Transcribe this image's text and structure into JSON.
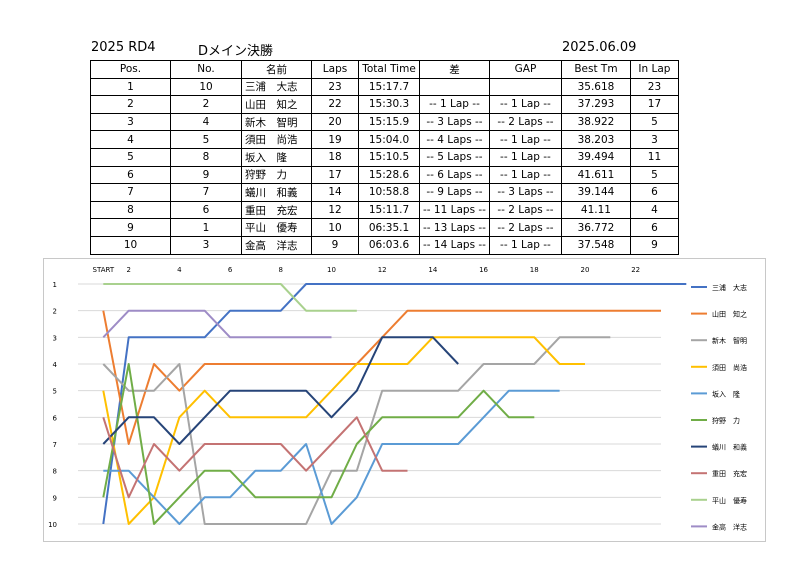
{
  "header": {
    "left": "2025 RD4",
    "mid": "Dメイン決勝",
    "right": "2025.06.09"
  },
  "table": {
    "columns": [
      "Pos.",
      "No.",
      "名前",
      "Laps",
      "Total Time",
      "差",
      "GAP",
      "Best Tm",
      "In Lap"
    ],
    "rows": [
      [
        "1",
        "10",
        "三浦　大志",
        "23",
        "15:17.7",
        "",
        "",
        "35.618",
        "23"
      ],
      [
        "2",
        "2",
        "山田　知之",
        "22",
        "15:30.3",
        "-- 1 Lap --",
        "-- 1 Lap --",
        "37.293",
        "17"
      ],
      [
        "3",
        "4",
        "新木　智明",
        "20",
        "15:15.9",
        "-- 3 Laps --",
        "-- 2 Laps --",
        "38.922",
        "5"
      ],
      [
        "4",
        "5",
        "須田　尚浩",
        "19",
        "15:04.0",
        "-- 4 Laps --",
        "-- 1 Lap --",
        "38.203",
        "3"
      ],
      [
        "5",
        "8",
        "坂入　隆",
        "18",
        "15:10.5",
        "-- 5 Laps --",
        "-- 1 Lap --",
        "39.494",
        "11"
      ],
      [
        "6",
        "9",
        "狩野　力",
        "17",
        "15:28.6",
        "-- 6 Laps --",
        "-- 1 Lap --",
        "41.611",
        "5"
      ],
      [
        "7",
        "7",
        "蟻川　和義",
        "14",
        "10:58.8",
        "-- 9 Laps --",
        "-- 3 Laps --",
        "39.144",
        "6"
      ],
      [
        "8",
        "6",
        "重田　充宏",
        "12",
        "15:11.7",
        "-- 11 Laps --",
        "-- 2 Laps --",
        "41.11",
        "4"
      ],
      [
        "9",
        "1",
        "平山　優寿",
        "10",
        "06:35.1",
        "-- 13 Laps --",
        "-- 2 Laps --",
        "36.772",
        "6"
      ],
      [
        "10",
        "3",
        "金高　洋志",
        "9",
        "06:03.6",
        "-- 14 Laps --",
        "-- 1 Lap --",
        "37.548",
        "9"
      ]
    ]
  },
  "chart_data": {
    "type": "line",
    "x_ticks": [
      "START",
      "2",
      "4",
      "6",
      "8",
      "10",
      "12",
      "14",
      "16",
      "18",
      "20",
      "22"
    ],
    "y_ticks": [
      "1",
      "2",
      "3",
      "4",
      "5",
      "6",
      "7",
      "8",
      "9",
      "10"
    ],
    "xlim": [
      0,
      23
    ],
    "ylim": [
      1,
      10
    ],
    "y_inverted": true,
    "grid": "horizontal",
    "legend_position": "right",
    "series": [
      {
        "name": "三浦　大志",
        "color": "#4472c4",
        "values": [
          10,
          3,
          3,
          3,
          3,
          2,
          2,
          2,
          1,
          1,
          1,
          1,
          1,
          1,
          1,
          1,
          1,
          1,
          1,
          1,
          1,
          1,
          1,
          1
        ]
      },
      {
        "name": "山田　知之",
        "color": "#ed7d31",
        "values": [
          2,
          7,
          4,
          5,
          4,
          4,
          4,
          4,
          4,
          4,
          4,
          3,
          2,
          2,
          2,
          2,
          2,
          2,
          2,
          2,
          2,
          2,
          2
        ]
      },
      {
        "name": "新木　智明",
        "color": "#a5a5a5",
        "values": [
          4,
          5,
          5,
          4,
          10,
          10,
          10,
          10,
          10,
          8,
          8,
          5,
          5,
          5,
          5,
          4,
          4,
          4,
          3,
          3,
          3
        ]
      },
      {
        "name": "須田　尚浩",
        "color": "#ffc000",
        "values": [
          5,
          10,
          9,
          6,
          5,
          6,
          6,
          6,
          6,
          5,
          4,
          4,
          4,
          3,
          3,
          3,
          3,
          3,
          4,
          4
        ]
      },
      {
        "name": "坂入　隆",
        "color": "#5b9bd5",
        "values": [
          8,
          8,
          9,
          10,
          9,
          9,
          8,
          8,
          7,
          10,
          9,
          7,
          7,
          7,
          7,
          6,
          5,
          5,
          5
        ]
      },
      {
        "name": "狩野　力",
        "color": "#70ad47",
        "values": [
          9,
          4,
          10,
          9,
          8,
          8,
          9,
          9,
          9,
          9,
          7,
          6,
          6,
          6,
          6,
          5,
          6,
          6
        ]
      },
      {
        "name": "蟻川　和義",
        "color": "#264478",
        "values": [
          7,
          6,
          6,
          7,
          6,
          5,
          5,
          5,
          5,
          6,
          5,
          3,
          3,
          3,
          4
        ]
      },
      {
        "name": "重田　充宏",
        "color": "#c47373",
        "values": [
          6,
          9,
          7,
          8,
          7,
          7,
          7,
          7,
          8,
          7,
          6,
          8,
          8
        ]
      },
      {
        "name": "平山　優寿",
        "color": "#a9d18e",
        "values": [
          1,
          1,
          1,
          1,
          1,
          1,
          1,
          1,
          2,
          2,
          2
        ]
      },
      {
        "name": "金高　洋志",
        "color": "#9e8cc6",
        "values": [
          3,
          2,
          2,
          2,
          2,
          3,
          3,
          3,
          3,
          3
        ]
      }
    ]
  }
}
